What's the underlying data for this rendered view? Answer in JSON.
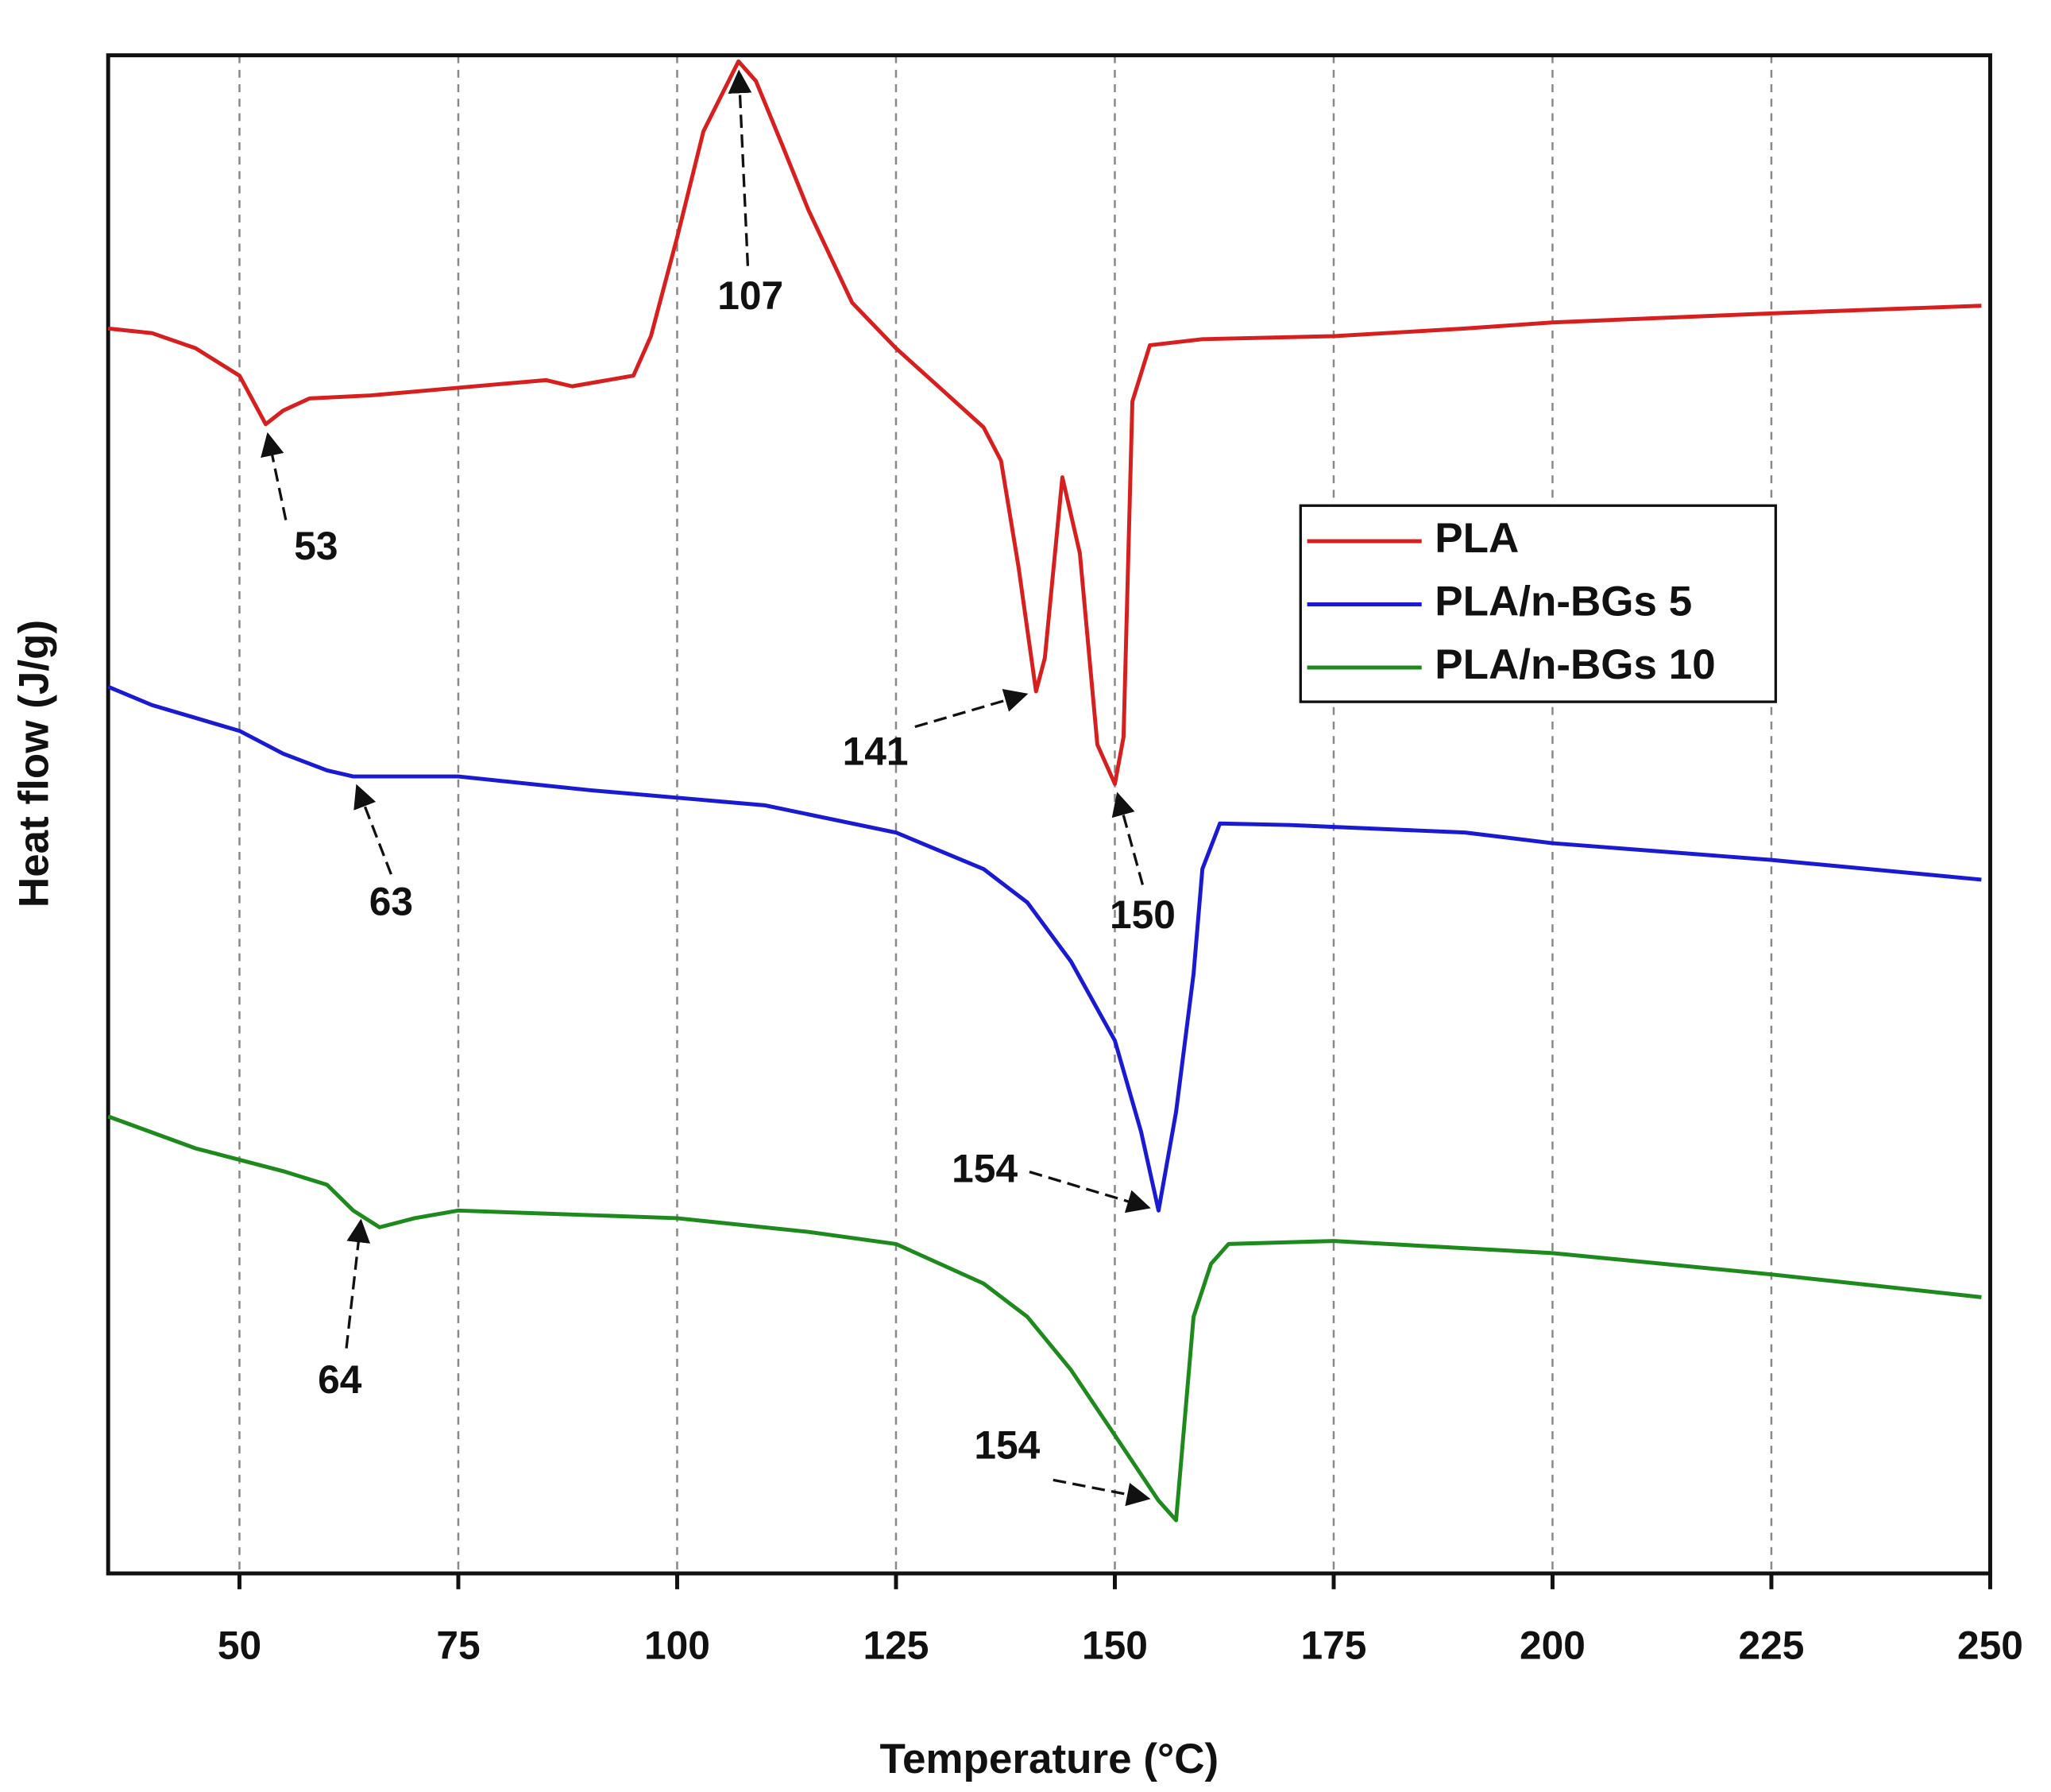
{
  "chart_data": {
    "type": "line",
    "x_label": "Temperature (°C)",
    "y_label": "Heat flow (J/g)",
    "xlim": [
      35,
      250
    ],
    "xticks": [
      50,
      75,
      100,
      125,
      150,
      175,
      200,
      225,
      250
    ],
    "ylim": [
      0,
      100
    ],
    "grid": true,
    "legend": "right",
    "series": [
      {
        "name": "PLA",
        "color": "#d62020",
        "x": [
          35,
          40,
          45,
          50,
          53,
          55,
          58,
          65,
          75,
          85,
          88,
          95,
          97,
          100,
          103,
          107,
          109,
          112,
          115,
          120,
          125,
          130,
          135,
          137,
          139,
          141,
          142,
          144,
          146,
          148,
          150,
          151,
          152,
          154,
          160,
          175,
          190,
          200,
          225,
          249
        ],
        "values": [
          82.0,
          81.7,
          80.7,
          78.9,
          75.7,
          76.6,
          77.4,
          77.6,
          78.1,
          78.6,
          78.2,
          78.9,
          81.5,
          88.0,
          95.0,
          99.6,
          98.3,
          94.1,
          89.8,
          83.7,
          80.7,
          78.1,
          75.5,
          73.3,
          66.3,
          58.1,
          60.3,
          72.2,
          67.2,
          54.6,
          52.0,
          55.1,
          77.2,
          80.9,
          81.3,
          81.5,
          82.0,
          82.4,
          83.0,
          83.5
        ]
      },
      {
        "name": "PLA/n-BGs 5",
        "color": "#1a1ad0",
        "x": [
          35,
          40,
          50,
          55,
          60,
          63,
          66,
          75,
          90,
          110,
          125,
          135,
          140,
          145,
          150,
          153,
          155,
          157,
          159,
          160,
          162,
          170,
          190,
          200,
          225,
          249
        ],
        "values": [
          58.4,
          57.2,
          55.5,
          54.0,
          52.9,
          52.5,
          52.5,
          52.5,
          51.6,
          50.6,
          48.8,
          46.4,
          44.2,
          40.3,
          35.1,
          29.1,
          23.9,
          30.4,
          39.5,
          46.4,
          49.4,
          49.3,
          48.8,
          48.1,
          47.0,
          45.7
        ]
      },
      {
        "name": "PLA/n-BGs 10",
        "color": "#1e8a1e",
        "x": [
          35,
          45,
          55,
          60,
          63,
          66,
          70,
          75,
          100,
          115,
          125,
          135,
          140,
          145,
          150,
          155,
          157,
          159,
          161,
          163,
          175,
          200,
          225,
          249
        ],
        "values": [
          30.1,
          28.0,
          26.5,
          25.6,
          23.9,
          22.8,
          23.4,
          23.9,
          23.4,
          22.5,
          21.7,
          19.1,
          16.9,
          13.4,
          9.1,
          4.8,
          3.5,
          16.9,
          20.4,
          21.7,
          21.9,
          21.1,
          19.7,
          18.2
        ]
      }
    ],
    "annotations": [
      {
        "text": "53",
        "x": 53,
        "y": 75.7
      },
      {
        "text": "107",
        "x": 107,
        "y": 99.6
      },
      {
        "text": "141",
        "x": 141,
        "y": 58.1
      },
      {
        "text": "150",
        "x": 150,
        "y": 52.0
      },
      {
        "text": "63",
        "x": 63,
        "y": 52.5
      },
      {
        "text": "154",
        "x": 155,
        "y": 23.9
      },
      {
        "text": "64",
        "x": 64,
        "y": 23.9
      },
      {
        "text": "154",
        "x": 155,
        "y": 4.8
      }
    ]
  }
}
